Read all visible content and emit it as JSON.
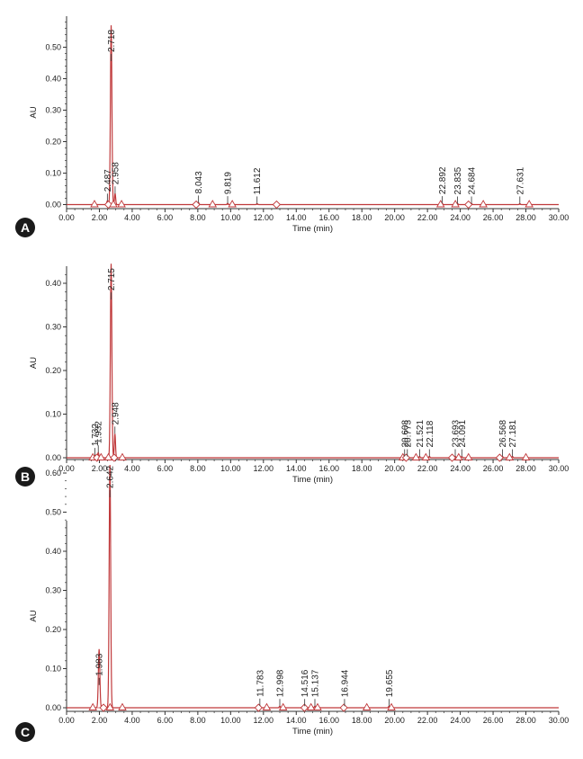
{
  "chart_data": [
    {
      "panel": "A",
      "type": "line",
      "xlabel": "Time (min)",
      "ylabel": "AU",
      "xlim": [
        0,
        30
      ],
      "ylim": [
        -0.02,
        0.58
      ],
      "x_ticks": [
        "0.00",
        "2.00",
        "4.00",
        "6.00",
        "8.00",
        "10.00",
        "12.00",
        "14.00",
        "16.00",
        "18.00",
        "20.00",
        "22.00",
        "24.00",
        "26.00",
        "28.00",
        "30.00"
      ],
      "y_ticks": [
        "0.00",
        "0.10",
        "0.20",
        "0.30",
        "0.40",
        "0.50"
      ],
      "peaks": [
        {
          "label": "2.487",
          "rt": 2.487,
          "height": 0.012
        },
        {
          "label": "2.718",
          "rt": 2.718,
          "height": 0.57
        },
        {
          "label": "2.958",
          "rt": 2.958,
          "height": 0.035
        },
        {
          "label": "8.043",
          "rt": 8.043,
          "height": 0.006
        },
        {
          "label": "9.819",
          "rt": 9.819,
          "height": 0.004
        },
        {
          "label": "11.612",
          "rt": 11.612,
          "height": 0.003
        },
        {
          "label": "22.892",
          "rt": 22.892,
          "height": 0.004
        },
        {
          "label": "23.835",
          "rt": 23.835,
          "height": 0.003
        },
        {
          "label": "24.684",
          "rt": 24.684,
          "height": 0.003
        },
        {
          "label": "27.631",
          "rt": 27.631,
          "height": 0.003
        }
      ],
      "baseline_markers": [
        1.7,
        2.55,
        2.85,
        3.35,
        7.9,
        8.9,
        10.1,
        12.8,
        22.8,
        23.7,
        24.5,
        25.4,
        28.2
      ]
    },
    {
      "panel": "B",
      "type": "line",
      "xlabel": "Time (min)",
      "ylabel": "AU",
      "xlim": [
        0,
        30
      ],
      "ylim": [
        -0.015,
        0.45
      ],
      "x_ticks": [
        "0.00",
        "2.00",
        "4.00",
        "6.00",
        "8.00",
        "10.00",
        "12.00",
        "14.00",
        "16.00",
        "18.00",
        "20.00",
        "22.00",
        "24.00",
        "26.00",
        "28.00",
        "30.00"
      ],
      "y_ticks": [
        "0.00",
        "0.10",
        "0.20",
        "0.30",
        "0.40"
      ],
      "peaks": [
        {
          "label": "1.732",
          "rt": 1.732,
          "height": 0.006
        },
        {
          "label": "1.932",
          "rt": 1.932,
          "height": 0.012
        },
        {
          "label": "2.715",
          "rt": 2.715,
          "height": 0.445
        },
        {
          "label": "2.948",
          "rt": 2.948,
          "height": 0.055
        },
        {
          "label": "20.608",
          "rt": 20.608,
          "height": 0.003
        },
        {
          "label": "20.773",
          "rt": 20.773,
          "height": 0.003
        },
        {
          "label": "21.521",
          "rt": 21.521,
          "height": 0.003
        },
        {
          "label": "22.118",
          "rt": 22.118,
          "height": 0.003
        },
        {
          "label": "23.693",
          "rt": 23.693,
          "height": 0.003
        },
        {
          "label": "24.091",
          "rt": 24.091,
          "height": 0.003
        },
        {
          "label": "26.568",
          "rt": 26.568,
          "height": 0.003
        },
        {
          "label": "27.181",
          "rt": 27.181,
          "height": 0.003
        }
      ],
      "baseline_markers": [
        1.6,
        1.85,
        2.1,
        2.55,
        2.9,
        3.4,
        20.5,
        20.7,
        21.3,
        21.9,
        23.5,
        23.9,
        24.5,
        26.4,
        27.0,
        28.0
      ]
    },
    {
      "panel": "C",
      "type": "line",
      "xlabel": "Time (min)",
      "ylabel": "AU",
      "xlim": [
        0,
        30
      ],
      "ylim": [
        -0.02,
        0.64
      ],
      "x_ticks": [
        "0.00",
        "2.00",
        "4.00",
        "6.00",
        "8.00",
        "10.00",
        "12.00",
        "14.00",
        "16.00",
        "18.00",
        "20.00",
        "22.00",
        "24.00",
        "26.00",
        "28.00",
        "30.00"
      ],
      "y_ticks": [
        "0.00",
        "0.10",
        "0.20",
        "0.30",
        "0.40",
        "0.50",
        "0.60"
      ],
      "peaks": [
        {
          "label": "1.983",
          "rt": 1.983,
          "height": 0.15
        },
        {
          "label": "2.642",
          "rt": 2.642,
          "height": 0.63
        },
        {
          "label": "11.783",
          "rt": 11.783,
          "height": 0.005
        },
        {
          "label": "12.998",
          "rt": 12.998,
          "height": 0.004
        },
        {
          "label": "14.516",
          "rt": 14.516,
          "height": 0.004
        },
        {
          "label": "15.137",
          "rt": 15.137,
          "height": 0.004
        },
        {
          "label": "16.944",
          "rt": 16.944,
          "height": 0.004
        },
        {
          "label": "19.655",
          "rt": 19.655,
          "height": 0.004
        }
      ],
      "baseline_markers": [
        1.6,
        2.25,
        2.65,
        3.4,
        11.7,
        12.2,
        13.2,
        14.5,
        14.9,
        15.3,
        16.9,
        18.3,
        19.8
      ]
    }
  ]
}
